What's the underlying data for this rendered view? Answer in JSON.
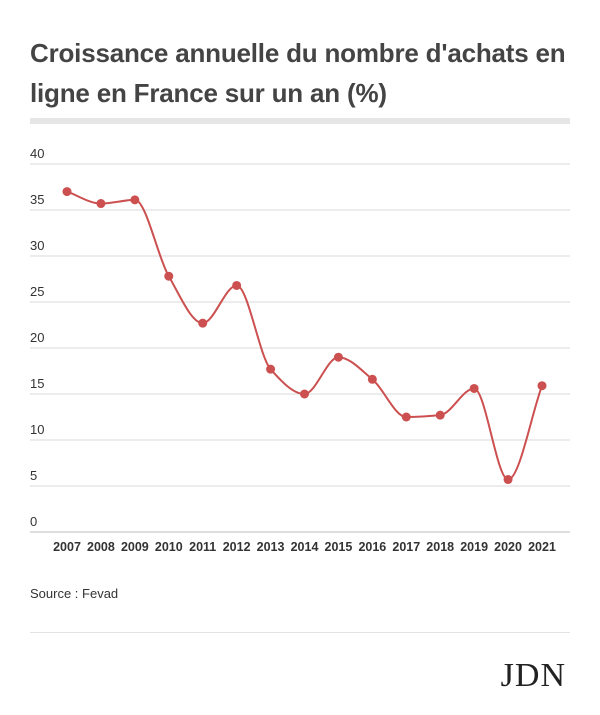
{
  "title": "Croissance annuelle du nombre d'achats en ligne en France sur un an (%)",
  "source": "Source : Fevad",
  "logo": "JDN",
  "colors": {
    "line": "#cc5050",
    "grid": "#d9d9d9",
    "text": "#333333"
  },
  "chart_data": {
    "type": "line",
    "title": "Croissance annuelle du nombre d'achats en ligne en France sur un an (%)",
    "xlabel": "",
    "ylabel": "",
    "categories": [
      "2007",
      "2008",
      "2009",
      "2010",
      "2011",
      "2012",
      "2013",
      "2014",
      "2015",
      "2016",
      "2017",
      "2018",
      "2019",
      "2020",
      "2021"
    ],
    "series": [
      {
        "values": [
          37,
          35.7,
          36.1,
          27.8,
          22.7,
          26.8,
          17.7,
          15,
          19,
          16.6,
          12.5,
          12.7,
          15.6,
          5.7,
          15.9
        ]
      }
    ],
    "ylim": [
      0,
      40
    ],
    "yticks": [
      0,
      5,
      10,
      15,
      20,
      25,
      30,
      35,
      40
    ],
    "grid": true,
    "legend": "none",
    "smooth": true
  }
}
